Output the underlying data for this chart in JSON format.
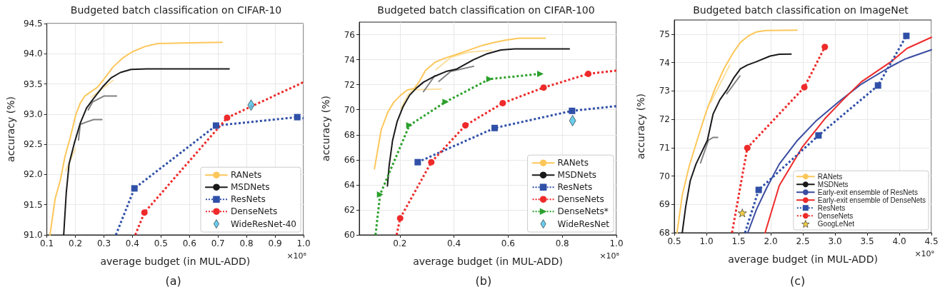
{
  "chart_data": [
    {
      "type": "line",
      "title": "Budgeted batch classification on CIFAR-10",
      "xlabel": "average budget (in MUL-ADD)",
      "ylabel": "accuracy (%)",
      "annotations": [
        "×10⁸",
        "(a)"
      ],
      "xlim": [
        0.1,
        1.0
      ],
      "ylim": [
        91.0,
        94.5
      ],
      "xticks": [
        0.1,
        0.2,
        0.3,
        0.4,
        0.5,
        0.6,
        0.7,
        0.8,
        0.9,
        {
          "value": 1.0,
          "label": "1.0"
        }
      ],
      "yticks": [
        {
          "value": 91.0,
          "label": "91.0"
        },
        91.5,
        {
          "value": 92.0,
          "label": "92.0"
        },
        92.5,
        {
          "value": 93.0,
          "label": "93.0"
        },
        93.5,
        {
          "value": 94.0,
          "label": "94.0"
        },
        94.5
      ],
      "grid": true,
      "legend": "bottom right",
      "series": [
        {
          "color": "#fbe0a3",
          "marker": "none",
          "line_style": "solid",
          "x": [
            0.166,
            0.2
          ],
          "values": [
            92.06,
            92.43
          ]
        },
        {
          "color": "#fbe0a3",
          "marker": "none",
          "line_style": "solid",
          "x": [
            0.256,
            0.332
          ],
          "values": [
            93.28,
            93.56
          ]
        },
        {
          "color": "#808080",
          "marker": "none",
          "line_style": "solid",
          "x": [
            0.211,
            0.217,
            0.239,
            0.264,
            0.293
          ],
          "values": [
            92.57,
            92.83,
            92.87,
            92.91,
            92.91
          ]
        },
        {
          "color": "#808080",
          "marker": "none",
          "line_style": "solid",
          "x": [
            0.245,
            0.26,
            0.301,
            0.344
          ],
          "values": [
            93.07,
            93.2,
            93.3,
            93.3
          ]
        },
        {
          "name": "RANets",
          "color": "#fcc75a",
          "marker": "none",
          "line_style": "solid",
          "x": [
            0.111,
            0.129,
            0.147,
            0.164,
            0.182,
            0.202,
            0.217,
            0.233,
            0.245,
            0.276,
            0.297,
            0.332,
            0.366,
            0.399,
            0.444,
            0.489,
            0.604,
            0.715
          ],
          "values": [
            91.0,
            91.6,
            91.9,
            92.31,
            92.61,
            93.0,
            93.18,
            93.3,
            93.34,
            93.44,
            93.56,
            93.78,
            93.93,
            94.03,
            94.12,
            94.17,
            94.18,
            94.19
          ]
        },
        {
          "name": "MSDNets",
          "color": "#1a1a1a",
          "marker": "none",
          "line_style": "solid",
          "x": [
            0.159,
            0.168,
            0.178,
            0.197,
            0.217,
            0.239,
            0.264,
            0.297,
            0.325,
            0.358,
            0.395,
            0.45,
            0.739
          ],
          "values": [
            91.0,
            91.7,
            92.18,
            92.53,
            92.85,
            93.1,
            93.26,
            93.46,
            93.6,
            93.69,
            93.74,
            93.75,
            93.75
          ]
        },
        {
          "name": "ResNets",
          "color": "#3050a8",
          "marker": "square",
          "line_style": "dotted",
          "x": [
            0.342,
            0.407,
            0.693,
            0.978,
            1.0
          ],
          "values": [
            91.0,
            91.77,
            92.81,
            92.95,
            92.93
          ]
        },
        {
          "name": "DenseNets",
          "color": "#ee2a2a",
          "marker": "circle",
          "line_style": "dotted",
          "x": [
            0.41,
            0.442,
            0.732,
            1.0
          ],
          "values": [
            91.0,
            91.37,
            92.94,
            93.53
          ]
        },
        {
          "name": "WideResNet-40",
          "type": "scatter",
          "color": "#45c0e8",
          "marker": "diamond",
          "x": [
            0.816
          ],
          "values": [
            93.15
          ]
        }
      ]
    },
    {
      "type": "line",
      "title": "Budgeted batch classification on CIFAR-100",
      "xlabel": "average budget (in MUL-ADD)",
      "ylabel": "accuracy (%)",
      "annotations": [
        "×10⁸",
        "(b)"
      ],
      "xlim": [
        0.05,
        1.0
      ],
      "ylim": [
        60,
        77
      ],
      "xticks": [
        0.2,
        0.4,
        0.6,
        0.8,
        {
          "value": 1.0,
          "label": "1.0"
        }
      ],
      "yticks": [
        60,
        62,
        64,
        66,
        68,
        70,
        72,
        74,
        76
      ],
      "grid": true,
      "legend": "bottom right",
      "series": [
        {
          "color": "#fbe0a3",
          "marker": "none",
          "line_style": "solid",
          "x": [
            0.204,
            0.23,
            0.25,
            0.352
          ],
          "values": [
            70.1,
            71.2,
            71.6,
            71.65
          ]
        },
        {
          "color": "#fbe0a3",
          "marker": "none",
          "line_style": "solid",
          "x": [
            0.333,
            0.39,
            0.455,
            0.539
          ],
          "values": [
            73.2,
            74.2,
            74.6,
            74.75
          ]
        },
        {
          "color": "#808080",
          "marker": "none",
          "line_style": "solid",
          "x": [
            0.287,
            0.329
          ],
          "values": [
            71.44,
            72.72
          ]
        },
        {
          "color": "#808080",
          "marker": "none",
          "line_style": "solid",
          "x": [
            0.344,
            0.388,
            0.472
          ],
          "values": [
            72.26,
            73.06,
            73.47
          ]
        },
        {
          "name": "RANets",
          "color": "#fcc75a",
          "marker": "none",
          "line_style": "solid",
          "x": [
            0.106,
            0.131,
            0.156,
            0.177,
            0.203,
            0.228,
            0.253,
            0.27,
            0.295,
            0.329,
            0.363,
            0.405,
            0.455,
            0.506,
            0.548,
            0.59,
            0.64,
            0.737
          ],
          "values": [
            65.28,
            68.4,
            69.83,
            70.59,
            71.16,
            71.58,
            71.69,
            72.2,
            73.15,
            73.78,
            74.1,
            74.39,
            74.77,
            75.15,
            75.37,
            75.56,
            75.71,
            75.71
          ]
        },
        {
          "name": "MSDNets",
          "color": "#1a1a1a",
          "marker": "none",
          "line_style": "solid",
          "x": [
            0.154,
            0.16,
            0.173,
            0.19,
            0.211,
            0.236,
            0.261,
            0.287,
            0.329,
            0.371,
            0.41,
            0.472,
            0.523,
            0.573,
            0.624,
            0.826
          ],
          "values": [
            63.91,
            65.47,
            67.55,
            69.07,
            70.21,
            71.16,
            71.73,
            72.2,
            72.68,
            73.06,
            73.25,
            74.0,
            74.48,
            74.77,
            74.86,
            74.86
          ]
        },
        {
          "name": "ResNets",
          "color": "#3050a8",
          "marker": "square",
          "line_style": "dotted",
          "x": [
            0.266,
            0.55,
            0.836,
            1.0
          ],
          "values": [
            65.81,
            68.54,
            69.91,
            70.29
          ]
        },
        {
          "name": "DenseNets",
          "color": "#ee2a2a",
          "marker": "circle",
          "line_style": "dotted",
          "x": [
            0.188,
            0.201,
            0.316,
            0.442,
            0.58,
            0.731,
            0.896,
            1.0
          ],
          "values": [
            60,
            61.33,
            65.81,
            68.75,
            70.53,
            71.77,
            72.87,
            73.13
          ]
        },
        {
          "name": "DenseNets*",
          "color": "#2ca02c",
          "marker": "triangle",
          "line_style": "dotted",
          "x": [
            0.11,
            0.127,
            0.235,
            0.369,
            0.531,
            0.719
          ],
          "values": [
            60,
            63.23,
            68.75,
            70.63,
            72.45,
            72.87
          ]
        },
        {
          "name": "WideResNet",
          "type": "scatter",
          "color": "#45c0e8",
          "marker": "diamond",
          "x": [
            0.838
          ],
          "values": [
            69.13
          ]
        }
      ]
    },
    {
      "type": "line",
      "title": "Budgeted batch classification on ImageNet",
      "xlabel": "average budget (in MUL-ADD)",
      "ylabel": "accuracy (%)",
      "annotations": [
        "×10⁹",
        "(c)"
      ],
      "xlim": [
        0.5,
        4.5
      ],
      "ylim": [
        68,
        75.5
      ],
      "xticks": [
        0.5,
        {
          "value": 1.0,
          "label": "1.0"
        },
        1.5,
        {
          "value": 2.0,
          "label": "2.0"
        },
        2.5,
        {
          "value": 3.0,
          "label": "3.0"
        },
        3.5,
        {
          "value": 4.0,
          "label": "4.0"
        },
        4.5
      ],
      "yticks": [
        68,
        69,
        70,
        71,
        72,
        73,
        74,
        75
      ],
      "grid": true,
      "legend": "bottom right",
      "series": [
        {
          "color": "#fbe0a3",
          "marker": "none",
          "line_style": "solid",
          "x": [
            1.068,
            1.362
          ],
          "values": [
            72.6,
            73.91
          ]
        },
        {
          "color": "#808080",
          "marker": "none",
          "line_style": "solid",
          "x": [
            0.908,
            1.032,
            1.103,
            1.174
          ],
          "values": [
            70.46,
            71.26,
            71.36,
            71.36
          ]
        },
        {
          "color": "#808080",
          "marker": "none",
          "line_style": "solid",
          "x": [
            1.316,
            1.522
          ],
          "values": [
            72.9,
            73.53
          ]
        },
        {
          "name": "RANets",
          "color": "#fcc75a",
          "marker": "none",
          "line_style": "solid",
          "x": [
            0.543,
            0.624,
            0.731,
            0.855,
            0.997,
            1.139,
            1.281,
            1.423,
            1.529,
            1.653,
            1.778,
            1.92,
            2.41
          ],
          "values": [
            68,
            69.33,
            70.34,
            71.26,
            72.27,
            73.11,
            73.82,
            74.37,
            74.71,
            74.94,
            75.08,
            75.13,
            75.14
          ]
        },
        {
          "name": "MSDNets",
          "color": "#1a1a1a",
          "marker": "none",
          "line_style": "solid",
          "x": [
            0.624,
            0.677,
            0.748,
            0.837,
            0.926,
            1.015,
            1.103,
            1.21,
            1.316,
            1.423,
            1.529,
            1.636,
            1.778,
            1.991,
            2.133,
            2.317
          ],
          "values": [
            68,
            68.91,
            69.83,
            70.42,
            70.84,
            71.26,
            72.18,
            72.69,
            73.03,
            73.45,
            73.78,
            73.91,
            74.03,
            74.23,
            74.29,
            74.3
          ]
        },
        {
          "name": "Early-exit ensemble of ResNets",
          "color": "#3a4ca0",
          "marker": "none",
          "line_style": "solid",
          "x": [
            1.643,
            1.778,
            1.937,
            2.133,
            2.417,
            2.7,
            3.055,
            3.41,
            3.836,
            4.085,
            4.5
          ],
          "values": [
            68,
            68.82,
            69.58,
            70.42,
            71.26,
            71.93,
            72.61,
            73.24,
            73.82,
            74.12,
            74.45
          ]
        },
        {
          "name": "Early-exit ensemble of DenseNets",
          "color": "#ee2a2a",
          "marker": "none",
          "line_style": "solid",
          "x": [
            1.913,
            2.133,
            2.488,
            2.842,
            3.126,
            3.41,
            3.872,
            4.12,
            4.5
          ],
          "values": [
            68,
            69.66,
            71.01,
            72.02,
            72.69,
            73.32,
            74.03,
            74.5,
            74.89
          ]
        },
        {
          "name": "ResNets",
          "color": "#3050a8",
          "marker": "square",
          "line_style": "dotted",
          "x": [
            1.6,
            1.813,
            2.743,
            3.669,
            4.11
          ],
          "values": [
            68,
            69.51,
            71.43,
            73.19,
            74.94
          ]
        },
        {
          "name": "DenseNets",
          "color": "#ee2a2a",
          "marker": "circle",
          "line_style": "dotted",
          "x": [
            1.398,
            1.636,
            2.523,
            2.842
          ],
          "values": [
            68,
            70.99,
            73.13,
            74.55
          ]
        },
        {
          "name": "GoogLeNet",
          "type": "scatter",
          "color": "#f5c518",
          "marker": "star",
          "x": [
            1.558
          ],
          "values": [
            68.7
          ]
        }
      ]
    }
  ]
}
